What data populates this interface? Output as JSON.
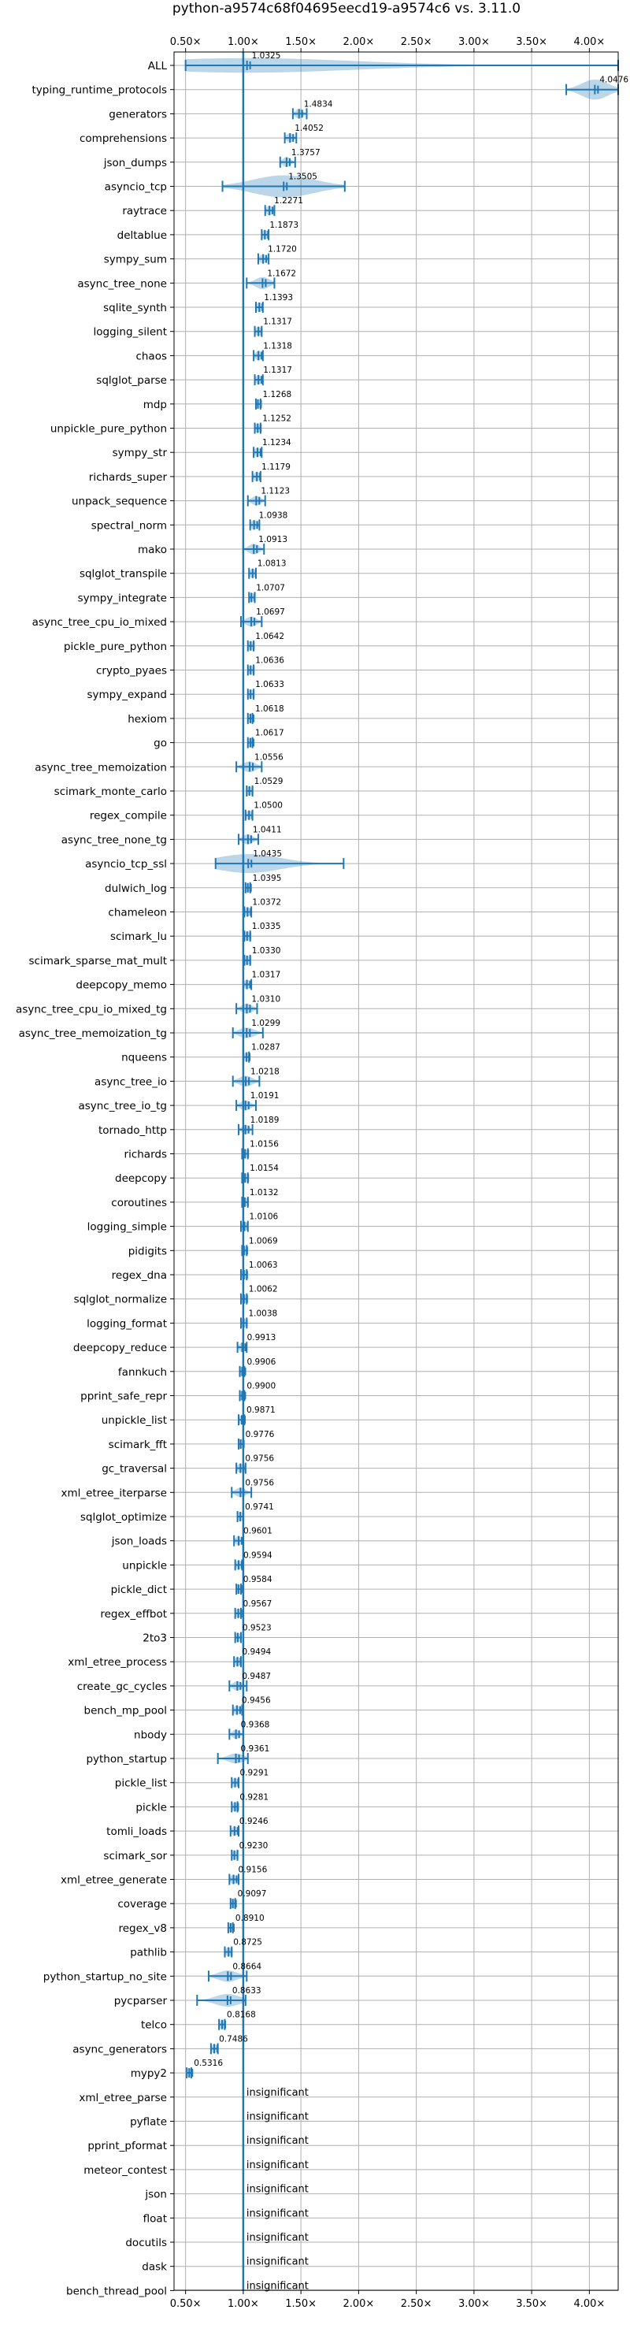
{
  "chart_data": {
    "type": "violin",
    "orientation": "horizontal",
    "title": "python-a9574c68f04695eecd19-a9574c6 vs. 3.11.0",
    "xlim": [
      0.4,
      4.25
    ],
    "xticks": [
      0.5,
      1.0,
      1.5,
      2.0,
      2.5,
      3.0,
      3.5,
      4.0
    ],
    "xticklabels": [
      "0.50×",
      "1.00×",
      "1.50×",
      "2.00×",
      "2.50×",
      "3.00×",
      "3.50×",
      "4.00×"
    ],
    "reference_line": 1.0,
    "grid": true,
    "insignificant_label": "insignificant",
    "benchmarks": [
      {
        "name": "ALL",
        "value": 1.0325,
        "label": "1.0325",
        "lo": 0.5,
        "hi": 4.25,
        "spread": 0.13
      },
      {
        "name": "typing_runtime_protocols",
        "value": 4.0476,
        "label": "4.0476",
        "lo": 3.8,
        "hi": 4.25,
        "spread": 0.22
      },
      {
        "name": "generators",
        "value": 1.4834,
        "label": "1.4834",
        "lo": 1.43,
        "hi": 1.55,
        "spread": 0.06
      },
      {
        "name": "comprehensions",
        "value": 1.4052,
        "label": "1.4052",
        "lo": 1.36,
        "hi": 1.46,
        "spread": 0.05
      },
      {
        "name": "json_dumps",
        "value": 1.3757,
        "label": "1.3757",
        "lo": 1.32,
        "hi": 1.45,
        "spread": 0.06
      },
      {
        "name": "asyncio_tcp",
        "value": 1.3505,
        "label": "1.3505",
        "lo": 0.82,
        "hi": 1.88,
        "spread": 0.5
      },
      {
        "name": "raytrace",
        "value": 1.2271,
        "label": "1.2271",
        "lo": 1.19,
        "hi": 1.27,
        "spread": 0.04
      },
      {
        "name": "deltablue",
        "value": 1.1873,
        "label": "1.1873",
        "lo": 1.16,
        "hi": 1.22,
        "spread": 0.03
      },
      {
        "name": "sympy_sum",
        "value": 1.172,
        "label": "1.1720",
        "lo": 1.13,
        "hi": 1.22,
        "spread": 0.04
      },
      {
        "name": "async_tree_none",
        "value": 1.1672,
        "label": "1.1672",
        "lo": 1.03,
        "hi": 1.27,
        "spread": 0.09
      },
      {
        "name": "sqlite_synth",
        "value": 1.1393,
        "label": "1.1393",
        "lo": 1.11,
        "hi": 1.17,
        "spread": 0.03
      },
      {
        "name": "logging_silent",
        "value": 1.1317,
        "label": "1.1317",
        "lo": 1.1,
        "hi": 1.16,
        "spread": 0.03
      },
      {
        "name": "chaos",
        "value": 1.1318,
        "label": "1.1318",
        "lo": 1.09,
        "hi": 1.17,
        "spread": 0.04
      },
      {
        "name": "sqlglot_parse",
        "value": 1.1317,
        "label": "1.1317",
        "lo": 1.1,
        "hi": 1.17,
        "spread": 0.035
      },
      {
        "name": "mdp",
        "value": 1.1268,
        "label": "1.1268",
        "lo": 1.11,
        "hi": 1.15,
        "spread": 0.02
      },
      {
        "name": "unpickle_pure_python",
        "value": 1.1252,
        "label": "1.1252",
        "lo": 1.1,
        "hi": 1.15,
        "spread": 0.02
      },
      {
        "name": "sympy_str",
        "value": 1.1234,
        "label": "1.1234",
        "lo": 1.09,
        "hi": 1.16,
        "spread": 0.03
      },
      {
        "name": "richards_super",
        "value": 1.1179,
        "label": "1.1179",
        "lo": 1.08,
        "hi": 1.15,
        "spread": 0.03
      },
      {
        "name": "unpack_sequence",
        "value": 1.1123,
        "label": "1.1123",
        "lo": 1.04,
        "hi": 1.19,
        "spread": 0.05
      },
      {
        "name": "spectral_norm",
        "value": 1.0938,
        "label": "1.0938",
        "lo": 1.06,
        "hi": 1.14,
        "spread": 0.03
      },
      {
        "name": "mako",
        "value": 1.0913,
        "label": "1.0913",
        "lo": 1.0,
        "hi": 1.18,
        "spread": 0.07
      },
      {
        "name": "sqlglot_transpile",
        "value": 1.0813,
        "label": "1.0813",
        "lo": 1.05,
        "hi": 1.11,
        "spread": 0.03
      },
      {
        "name": "sympy_integrate",
        "value": 1.0707,
        "label": "1.0707",
        "lo": 1.05,
        "hi": 1.1,
        "spread": 0.02
      },
      {
        "name": "async_tree_cpu_io_mixed",
        "value": 1.0697,
        "label": "1.0697",
        "lo": 0.98,
        "hi": 1.16,
        "spread": 0.06
      },
      {
        "name": "pickle_pure_python",
        "value": 1.0642,
        "label": "1.0642",
        "lo": 1.04,
        "hi": 1.09,
        "spread": 0.02
      },
      {
        "name": "crypto_pyaes",
        "value": 1.0636,
        "label": "1.0636",
        "lo": 1.04,
        "hi": 1.09,
        "spread": 0.02
      },
      {
        "name": "sympy_expand",
        "value": 1.0633,
        "label": "1.0633",
        "lo": 1.04,
        "hi": 1.09,
        "spread": 0.02
      },
      {
        "name": "hexiom",
        "value": 1.0618,
        "label": "1.0618",
        "lo": 1.04,
        "hi": 1.08,
        "spread": 0.02
      },
      {
        "name": "go",
        "value": 1.0617,
        "label": "1.0617",
        "lo": 1.04,
        "hi": 1.08,
        "spread": 0.02
      },
      {
        "name": "async_tree_memoization",
        "value": 1.0556,
        "label": "1.0556",
        "lo": 0.94,
        "hi": 1.16,
        "spread": 0.07
      },
      {
        "name": "scimark_monte_carlo",
        "value": 1.0529,
        "label": "1.0529",
        "lo": 1.03,
        "hi": 1.08,
        "spread": 0.02
      },
      {
        "name": "regex_compile",
        "value": 1.05,
        "label": "1.0500",
        "lo": 1.02,
        "hi": 1.08,
        "spread": 0.025
      },
      {
        "name": "async_tree_none_tg",
        "value": 1.0411,
        "label": "1.0411",
        "lo": 0.96,
        "hi": 1.13,
        "spread": 0.06
      },
      {
        "name": "asyncio_tcp_ssl",
        "value": 1.0435,
        "label": "1.0435",
        "lo": 0.76,
        "hi": 1.87,
        "spread": 0.2
      },
      {
        "name": "dulwich_log",
        "value": 1.0395,
        "label": "1.0395",
        "lo": 1.02,
        "hi": 1.06,
        "spread": 0.02
      },
      {
        "name": "chameleon",
        "value": 1.0372,
        "label": "1.0372",
        "lo": 1.01,
        "hi": 1.07,
        "spread": 0.03
      },
      {
        "name": "scimark_lu",
        "value": 1.0335,
        "label": "1.0335",
        "lo": 1.01,
        "hi": 1.06,
        "spread": 0.025
      },
      {
        "name": "scimark_sparse_mat_mult",
        "value": 1.033,
        "label": "1.0330",
        "lo": 1.01,
        "hi": 1.06,
        "spread": 0.02
      },
      {
        "name": "deepcopy_memo",
        "value": 1.0317,
        "label": "1.0317",
        "lo": 1.0,
        "hi": 1.07,
        "spread": 0.03
      },
      {
        "name": "async_tree_cpu_io_mixed_tg",
        "value": 1.031,
        "label": "1.0310",
        "lo": 0.94,
        "hi": 1.12,
        "spread": 0.06
      },
      {
        "name": "async_tree_memoization_tg",
        "value": 1.0299,
        "label": "1.0299",
        "lo": 0.91,
        "hi": 1.17,
        "spread": 0.07
      },
      {
        "name": "nqueens",
        "value": 1.0287,
        "label": "1.0287",
        "lo": 1.0,
        "hi": 1.05,
        "spread": 0.02
      },
      {
        "name": "async_tree_io",
        "value": 1.0218,
        "label": "1.0218",
        "lo": 0.91,
        "hi": 1.14,
        "spread": 0.07
      },
      {
        "name": "async_tree_io_tg",
        "value": 1.0191,
        "label": "1.0191",
        "lo": 0.94,
        "hi": 1.11,
        "spread": 0.06
      },
      {
        "name": "tornado_http",
        "value": 1.0189,
        "label": "1.0189",
        "lo": 0.96,
        "hi": 1.08,
        "spread": 0.04
      },
      {
        "name": "richards",
        "value": 1.0156,
        "label": "1.0156",
        "lo": 0.99,
        "hi": 1.04,
        "spread": 0.025
      },
      {
        "name": "deepcopy",
        "value": 1.0154,
        "label": "1.0154",
        "lo": 0.99,
        "hi": 1.04,
        "spread": 0.02
      },
      {
        "name": "coroutines",
        "value": 1.0132,
        "label": "1.0132",
        "lo": 0.99,
        "hi": 1.04,
        "spread": 0.02
      },
      {
        "name": "logging_simple",
        "value": 1.0106,
        "label": "1.0106",
        "lo": 0.98,
        "hi": 1.04,
        "spread": 0.025
      },
      {
        "name": "pidigits",
        "value": 1.0069,
        "label": "1.0069",
        "lo": 0.99,
        "hi": 1.03,
        "spread": 0.02
      },
      {
        "name": "regex_dna",
        "value": 1.0063,
        "label": "1.0063",
        "lo": 0.98,
        "hi": 1.03,
        "spread": 0.02
      },
      {
        "name": "sqlglot_normalize",
        "value": 1.0062,
        "label": "1.0062",
        "lo": 0.98,
        "hi": 1.03,
        "spread": 0.02
      },
      {
        "name": "logging_format",
        "value": 1.0038,
        "label": "1.0038",
        "lo": 0.98,
        "hi": 1.03,
        "spread": 0.02
      },
      {
        "name": "deepcopy_reduce",
        "value": 0.9913,
        "label": "0.9913",
        "lo": 0.95,
        "hi": 1.03,
        "spread": 0.03
      },
      {
        "name": "fannkuch",
        "value": 0.9906,
        "label": "0.9906",
        "lo": 0.97,
        "hi": 1.01,
        "spread": 0.02
      },
      {
        "name": "pprint_safe_repr",
        "value": 0.99,
        "label": "0.9900",
        "lo": 0.97,
        "hi": 1.01,
        "spread": 0.015
      },
      {
        "name": "unpickle_list",
        "value": 0.9871,
        "label": "0.9871",
        "lo": 0.96,
        "hi": 1.01,
        "spread": 0.02
      },
      {
        "name": "scimark_fft",
        "value": 0.9776,
        "label": "0.9776",
        "lo": 0.96,
        "hi": 1.0,
        "spread": 0.015
      },
      {
        "name": "gc_traversal",
        "value": 0.9756,
        "label": "0.9756",
        "lo": 0.94,
        "hi": 1.02,
        "spread": 0.03
      },
      {
        "name": "xml_etree_iterparse",
        "value": 0.9756,
        "label": "0.9756",
        "lo": 0.9,
        "hi": 1.07,
        "spread": 0.05
      },
      {
        "name": "sqlglot_optimize",
        "value": 0.9741,
        "label": "0.9741",
        "lo": 0.95,
        "hi": 1.0,
        "spread": 0.02
      },
      {
        "name": "json_loads",
        "value": 0.9601,
        "label": "0.9601",
        "lo": 0.92,
        "hi": 1.0,
        "spread": 0.03
      },
      {
        "name": "unpickle",
        "value": 0.9594,
        "label": "0.9594",
        "lo": 0.93,
        "hi": 0.99,
        "spread": 0.025
      },
      {
        "name": "pickle_dict",
        "value": 0.9584,
        "label": "0.9584",
        "lo": 0.94,
        "hi": 0.98,
        "spread": 0.015
      },
      {
        "name": "regex_effbot",
        "value": 0.9567,
        "label": "0.9567",
        "lo": 0.93,
        "hi": 0.98,
        "spread": 0.02
      },
      {
        "name": "2to3",
        "value": 0.9523,
        "label": "0.9523",
        "lo": 0.93,
        "hi": 0.98,
        "spread": 0.02
      },
      {
        "name": "xml_etree_process",
        "value": 0.9494,
        "label": "0.9494",
        "lo": 0.92,
        "hi": 0.98,
        "spread": 0.025
      },
      {
        "name": "create_gc_cycles",
        "value": 0.9487,
        "label": "0.9487",
        "lo": 0.88,
        "hi": 1.03,
        "spread": 0.05
      },
      {
        "name": "bench_mp_pool",
        "value": 0.9456,
        "label": "0.9456",
        "lo": 0.91,
        "hi": 0.99,
        "spread": 0.03
      },
      {
        "name": "nbody",
        "value": 0.9368,
        "label": "0.9368",
        "lo": 0.88,
        "hi": 1.0,
        "spread": 0.04
      },
      {
        "name": "python_startup",
        "value": 0.9361,
        "label": "0.9361",
        "lo": 0.78,
        "hi": 1.04,
        "spread": 0.06
      },
      {
        "name": "pickle_list",
        "value": 0.9291,
        "label": "0.9291",
        "lo": 0.9,
        "hi": 0.96,
        "spread": 0.025
      },
      {
        "name": "pickle",
        "value": 0.9281,
        "label": "0.9281",
        "lo": 0.9,
        "hi": 0.95,
        "spread": 0.02
      },
      {
        "name": "tomli_loads",
        "value": 0.9246,
        "label": "0.9246",
        "lo": 0.89,
        "hi": 0.96,
        "spread": 0.03
      },
      {
        "name": "scimark_sor",
        "value": 0.923,
        "label": "0.9230",
        "lo": 0.9,
        "hi": 0.95,
        "spread": 0.02
      },
      {
        "name": "xml_etree_generate",
        "value": 0.9156,
        "label": "0.9156",
        "lo": 0.88,
        "hi": 0.96,
        "spread": 0.03
      },
      {
        "name": "coverage",
        "value": 0.9097,
        "label": "0.9097",
        "lo": 0.89,
        "hi": 0.93,
        "spread": 0.015
      },
      {
        "name": "regex_v8",
        "value": 0.891,
        "label": "0.8910",
        "lo": 0.87,
        "hi": 0.91,
        "spread": 0.015
      },
      {
        "name": "pathlib",
        "value": 0.8725,
        "label": "0.8725",
        "lo": 0.84,
        "hi": 0.9,
        "spread": 0.025
      },
      {
        "name": "python_startup_no_site",
        "value": 0.8664,
        "label": "0.8664",
        "lo": 0.7,
        "hi": 1.03,
        "spread": 0.08
      },
      {
        "name": "pycparser",
        "value": 0.8633,
        "label": "0.8633",
        "lo": 0.6,
        "hi": 1.02,
        "spread": 0.1
      },
      {
        "name": "telco",
        "value": 0.8168,
        "label": "0.8168",
        "lo": 0.79,
        "hi": 0.84,
        "spread": 0.02
      },
      {
        "name": "async_generators",
        "value": 0.7486,
        "label": "0.7486",
        "lo": 0.72,
        "hi": 0.78,
        "spread": 0.02
      },
      {
        "name": "mypy2",
        "value": 0.5316,
        "label": "0.5316",
        "lo": 0.51,
        "hi": 0.55,
        "spread": 0.015
      },
      {
        "name": "xml_etree_parse",
        "insignificant": true
      },
      {
        "name": "pyflate",
        "insignificant": true
      },
      {
        "name": "pprint_pformat",
        "insignificant": true
      },
      {
        "name": "meteor_contest",
        "insignificant": true
      },
      {
        "name": "json",
        "insignificant": true
      },
      {
        "name": "float",
        "insignificant": true
      },
      {
        "name": "docutils",
        "insignificant": true
      },
      {
        "name": "dask",
        "insignificant": true
      },
      {
        "name": "bench_thread_pool",
        "insignificant": true
      }
    ]
  }
}
